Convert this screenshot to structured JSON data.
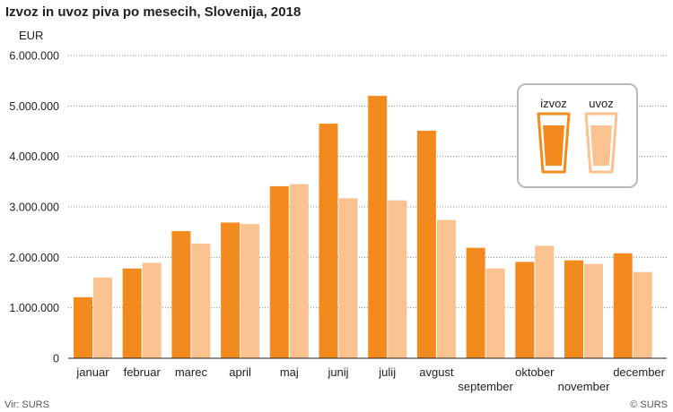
{
  "chart_data": {
    "type": "bar",
    "title": "Izvoz in uvoz piva po mesecih, Slovenija, 2018",
    "ylabel": "EUR",
    "xlabel": "",
    "ylim": [
      0,
      6000000
    ],
    "yticks": [
      0,
      1000000,
      2000000,
      3000000,
      4000000,
      5000000,
      6000000
    ],
    "ytick_labels": [
      "0",
      "1.000.000",
      "2.000.000",
      "3.000.000",
      "4.000.000",
      "5.000.000",
      "6.000.000"
    ],
    "categories": [
      "januar",
      "februar",
      "marec",
      "april",
      "maj",
      "junij",
      "julij",
      "avgust",
      "september",
      "oktober",
      "november",
      "december"
    ],
    "series": [
      {
        "name": "izvoz",
        "color": "#f28a1e",
        "values": [
          1210000,
          1780000,
          2520000,
          2690000,
          3410000,
          4650000,
          5200000,
          4510000,
          2190000,
          1910000,
          1940000,
          2080000
        ]
      },
      {
        "name": "uvoz",
        "color": "#f9c28e",
        "values": [
          1600000,
          1890000,
          2270000,
          2660000,
          3450000,
          3170000,
          3130000,
          2740000,
          1780000,
          2230000,
          1870000,
          1710000
        ]
      }
    ],
    "legend_position": "top-right"
  },
  "footer": {
    "source": "Vir: SURS",
    "copyright": "© SURS"
  }
}
